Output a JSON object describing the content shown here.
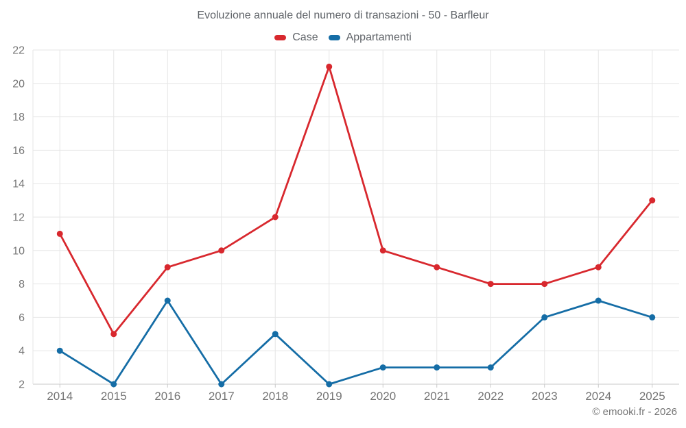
{
  "attribution": "© emooki.fr - 2026",
  "colors": {
    "case_red": "#d8282e",
    "appartamenti_blue": "#156da6",
    "grid": "#e6e6e6",
    "axis_line": "#c9c9c9",
    "tick_text": "#757575",
    "title_text": "#5f6368"
  },
  "chart_data": {
    "type": "line",
    "title": "Evoluzione annuale del numero di transazioni - 50 - Barfleur",
    "x": [
      "2014",
      "2015",
      "2016",
      "2017",
      "2018",
      "2019",
      "2020",
      "2021",
      "2022",
      "2023",
      "2024",
      "2025"
    ],
    "series": [
      {
        "name": "Case",
        "color": "#d8282e",
        "values": [
          11,
          5,
          9,
          10,
          12,
          21,
          10,
          9,
          8,
          8,
          9,
          13
        ]
      },
      {
        "name": "Appartamenti",
        "color": "#156da6",
        "values": [
          4,
          2,
          7,
          2,
          5,
          2,
          3,
          3,
          3,
          6,
          7,
          6
        ]
      }
    ],
    "ylim": [
      2,
      22
    ],
    "ytick_step": 2,
    "xlabel": "",
    "ylabel": "",
    "grid": true,
    "legend_position": "top",
    "marker": "circle"
  }
}
